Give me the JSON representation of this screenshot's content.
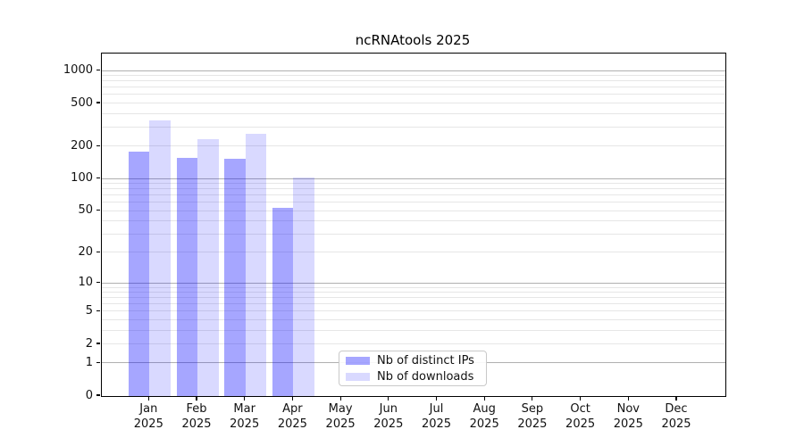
{
  "chart_data": {
    "type": "bar",
    "title": "ncRNAtools 2025",
    "categories": [
      "Jan",
      "Feb",
      "Mar",
      "Apr",
      "May",
      "Jun",
      "Jul",
      "Aug",
      "Sep",
      "Oct",
      "Nov",
      "Dec"
    ],
    "category_year_label": "2025",
    "series": [
      {
        "name": "Nb of distinct IPs",
        "color": "rgba(0,0,255,0.35)",
        "values": [
          180,
          157,
          153,
          54,
          0,
          0,
          0,
          0,
          0,
          0,
          0,
          0
        ]
      },
      {
        "name": "Nb of downloads",
        "color": "rgba(0,0,255,0.15)",
        "values": [
          350,
          235,
          260,
          104,
          0,
          0,
          0,
          0,
          0,
          0,
          0,
          0
        ]
      }
    ],
    "y_axis": {
      "scale": "log10(1+value)",
      "ticks": [
        0,
        1,
        2,
        5,
        10,
        20,
        50,
        100,
        200,
        500,
        1000
      ],
      "major_gridlines": [
        1,
        10,
        100,
        1000
      ],
      "minor_gridlines": [
        2,
        3,
        4,
        5,
        6,
        7,
        8,
        9,
        20,
        30,
        40,
        50,
        60,
        70,
        80,
        90,
        200,
        300,
        400,
        500,
        600,
        700,
        800,
        900
      ],
      "max_decades": 3.1614,
      "grid_minor_color": "#e6e6e6",
      "grid_major_color": "#b0b0b0"
    },
    "legend_position": "bottom-center"
  }
}
